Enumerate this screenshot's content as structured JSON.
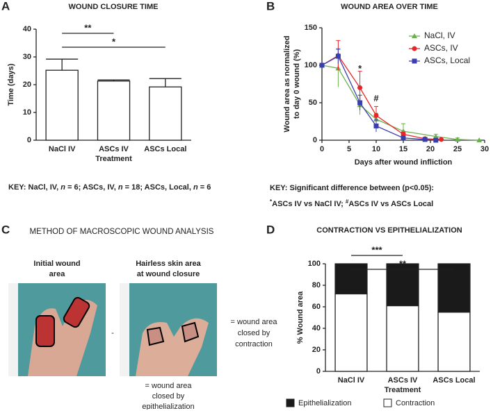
{
  "panels": [
    "A",
    "B",
    "C",
    "D"
  ],
  "key_a": [
    "KEY: NaCl, IV, ",
    "n",
    " = 6; ASCs, IV, ",
    "n",
    " = 18; ASCs, Local, ",
    "n",
    " = 6"
  ],
  "key_b": {
    "line1": "KEY: Significant difference between (p<0.05):",
    "line2": [
      "*",
      "ASCs IV vs NaCl IV; ",
      "#",
      "ASCs IV vs ASCs Local"
    ]
  },
  "method": {
    "title": "METHOD OF MACROSCOPIC WOUND ANALYSIS",
    "initial": [
      "Initial wound",
      "area"
    ],
    "closure": [
      "Hairless skin area",
      "at wound closure"
    ],
    "minus": "-",
    "contraction": [
      "= wound area",
      "closed by",
      "contraction"
    ],
    "epithelialization": [
      "= wound area",
      "closed by",
      "epithelialization"
    ]
  },
  "chart_data": [
    {
      "type": "bar",
      "title": "WOUND CLOSURE TIME",
      "ylabel": "Time (days)",
      "xlabel": "Treatment",
      "categories": [
        "NaCl IV",
        "ASCs IV",
        "ASCs Local"
      ],
      "values": [
        25.2,
        21.3,
        19.2
      ],
      "errors": [
        4.0,
        0.4,
        3.0
      ],
      "color": "#ffffff",
      "ylim": [
        0,
        40
      ],
      "yticks": [
        0,
        10,
        20,
        30,
        40
      ],
      "significance": [
        "**",
        "*"
      ]
    },
    {
      "type": "line",
      "title": "WOUND AREA OVER TIME",
      "ylabel": [
        "Wound area as normalized",
        "to day 0 wound (%)"
      ],
      "xlabel": "Days after wound infliction",
      "xlim": [
        0,
        30
      ],
      "xticks": [
        0,
        5,
        10,
        15,
        20,
        25,
        30
      ],
      "ylim": [
        0,
        150
      ],
      "yticks": [
        0,
        50,
        100,
        150
      ],
      "legend": "top-right",
      "series": [
        {
          "name": "NaCl, IV",
          "color": "#6ab04c",
          "marker": "triangle",
          "x": [
            0,
            3,
            7,
            10,
            15,
            21,
            25,
            29
          ],
          "values": [
            100,
            96,
            47,
            28,
            12,
            5,
            1,
            0
          ],
          "errors": [
            0,
            25,
            13,
            8,
            10,
            3,
            2,
            0
          ]
        },
        {
          "name": "ASCs, IV",
          "color": "#e8262a",
          "marker": "circle",
          "x": [
            0,
            3,
            7,
            10,
            15,
            19,
            22
          ],
          "values": [
            100,
            113,
            70,
            33,
            8,
            2,
            1
          ],
          "errors": [
            0,
            20,
            22,
            12,
            3,
            1,
            1
          ]
        },
        {
          "name": "ASCs, Local",
          "color": "#3a3fb0",
          "marker": "square",
          "x": [
            0,
            3,
            7,
            10,
            15,
            19,
            21
          ],
          "values": [
            100,
            112,
            50,
            19,
            3,
            1,
            0
          ],
          "errors": [
            0,
            10,
            10,
            8,
            2,
            1,
            0
          ]
        }
      ],
      "annotations": [
        {
          "text": "*",
          "x": 7,
          "y": 95
        },
        {
          "text": "#",
          "x": 10,
          "y": 55
        }
      ]
    },
    {
      "type": "stacked_bar",
      "title": "CONTRACTION VS EPITHELIALIZATION",
      "ylabel": "% Wound area",
      "xlabel": "Treatment",
      "categories": [
        "NaCl IV",
        "ASCs IV",
        "ASCs Local"
      ],
      "ylim": [
        0,
        100
      ],
      "yticks": [
        0,
        20,
        40,
        60,
        80,
        100
      ],
      "legend": "bottom",
      "series": [
        {
          "name": "Contraction",
          "color": "#ffffff",
          "values": [
            72,
            61,
            55
          ]
        },
        {
          "name": "Epithelialization",
          "color": "#1a1a1a",
          "values": [
            28,
            39,
            45
          ]
        }
      ],
      "significance": [
        "***",
        "**"
      ]
    }
  ]
}
